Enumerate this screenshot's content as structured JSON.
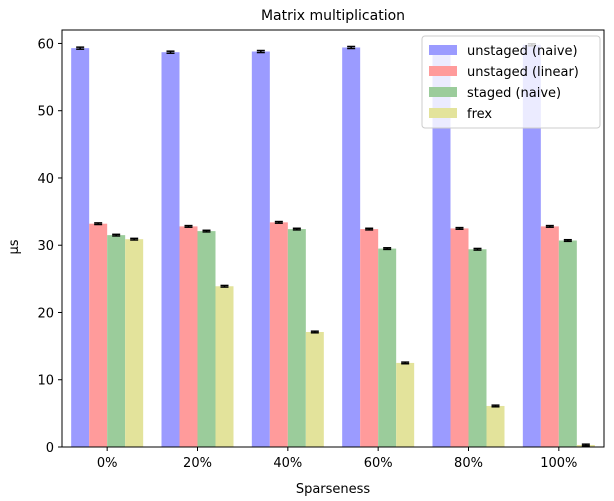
{
  "chart_data": {
    "type": "bar",
    "title": "Matrix multiplication",
    "xlabel": "Sparseness",
    "ylabel": "μs",
    "ylim": [
      0,
      62
    ],
    "yticks": [
      0,
      10,
      20,
      30,
      40,
      50,
      60
    ],
    "categories": [
      "0%",
      "20%",
      "40%",
      "60%",
      "80%",
      "100%"
    ],
    "grid": false,
    "legend_position": "top-right",
    "series": [
      {
        "name": "unstaged (naive)",
        "color": "#9b9bff",
        "values": [
          59.3,
          58.7,
          58.8,
          59.4,
          59.0,
          59.8
        ],
        "errors": [
          0.15,
          0.15,
          0.15,
          0.15,
          0.15,
          0.15
        ]
      },
      {
        "name": "unstaged (linear)",
        "color": "#ff9b9b",
        "values": [
          33.2,
          32.8,
          33.4,
          32.4,
          32.5,
          32.8
        ],
        "errors": [
          0.12,
          0.12,
          0.12,
          0.12,
          0.12,
          0.12
        ]
      },
      {
        "name": "staged (naive)",
        "color": "#9bcc9b",
        "values": [
          31.5,
          32.1,
          32.4,
          29.5,
          29.4,
          30.7
        ],
        "errors": [
          0.12,
          0.12,
          0.12,
          0.12,
          0.12,
          0.12
        ]
      },
      {
        "name": "frex",
        "color": "#e3e39b",
        "values": [
          30.9,
          23.9,
          17.1,
          12.5,
          6.1,
          0.3
        ],
        "errors": [
          0.12,
          0.12,
          0.12,
          0.12,
          0.12,
          0.12
        ]
      }
    ]
  }
}
